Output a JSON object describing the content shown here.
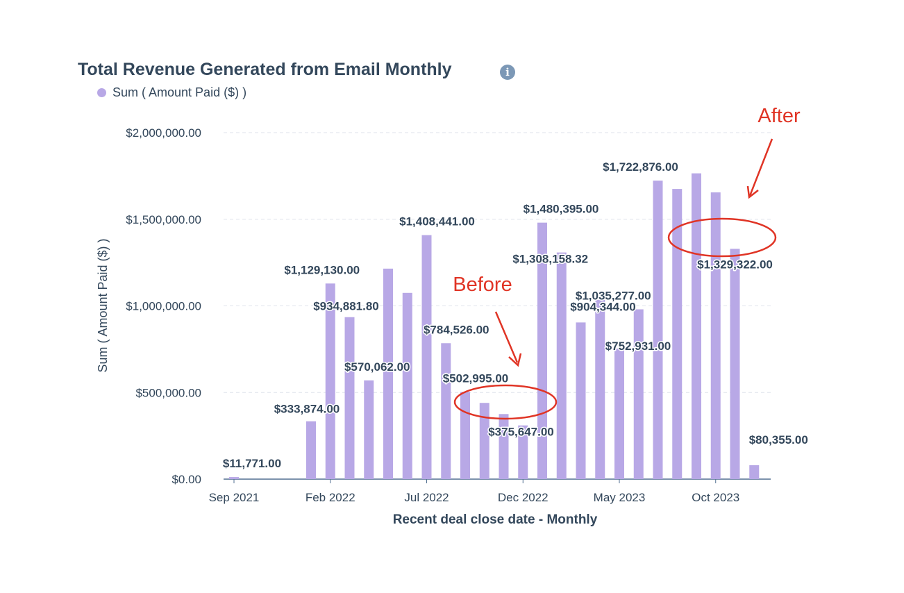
{
  "title": "Total Revenue Generated from Email Monthly",
  "info_icon": "info-circle-icon",
  "colors": {
    "bar": "#b8a8e6",
    "text": "#33475b",
    "grid": "#dfe3eb",
    "annotation": "#e03425"
  },
  "chart_data": {
    "type": "bar",
    "title": "Total Revenue Generated from Email Monthly",
    "xlabel": "Recent deal close date - Monthly",
    "ylabel": "Sum ( Amount Paid ($) )",
    "ylim": [
      0,
      2000000
    ],
    "yticks": [
      "$0.00",
      "$500,000.00",
      "$1,000,000.00",
      "$1,500,000.00",
      "$2,000,000.00"
    ],
    "xtick_labels": [
      {
        "category": "2021-09",
        "label": "Sep 2021"
      },
      {
        "category": "2022-02",
        "label": "Feb 2022"
      },
      {
        "category": "2022-07",
        "label": "Jul 2022"
      },
      {
        "category": "2022-12",
        "label": "Dec 2022"
      },
      {
        "category": "2023-05",
        "label": "May 2023"
      },
      {
        "category": "2023-10",
        "label": "Oct 2023"
      }
    ],
    "grid": true,
    "legend": "top-left",
    "categories": [
      "2021-09",
      "2021-10",
      "2021-11",
      "2021-12",
      "2022-01",
      "2022-02",
      "2022-03",
      "2022-04",
      "2022-05",
      "2022-06",
      "2022-07",
      "2022-08",
      "2022-09",
      "2022-10",
      "2022-11",
      "2022-12",
      "2023-01",
      "2023-02",
      "2023-03",
      "2023-04",
      "2023-05",
      "2023-06",
      "2023-07",
      "2023-08",
      "2023-09",
      "2023-10",
      "2023-11",
      "2023-12",
      "2024-01"
    ],
    "series": [
      {
        "name": "Sum ( Amount Paid ($) )",
        "values": [
          11771,
          0,
          0,
          0,
          333874,
          1129130,
          934881.8,
          570062,
          1215000,
          1075000,
          1408441,
          784526,
          502995,
          440000,
          375647,
          310000,
          1480395,
          1308158.32,
          904344,
          1035277,
          752931,
          980000,
          1722876,
          1675000,
          1765000,
          1655000,
          1329322,
          80355,
          0
        ],
        "data_labels": [
          "$11,771.00",
          null,
          null,
          null,
          "$333,874.00",
          "$1,129,130.00",
          "$934,881.80",
          "$570,062.00",
          null,
          null,
          "$1,408,441.00",
          "$784,526.00",
          "$502,995.00",
          null,
          "$375,647.00",
          null,
          "$1,480,395.00",
          "$1,308,158.32",
          "$904,344.00",
          "$1,035,277.00",
          "$752,931.00",
          null,
          "$1,722,876.00",
          null,
          null,
          null,
          "$1,329,322.00",
          "$80,355.00",
          null
        ]
      }
    ],
    "annotations": [
      {
        "text": "Before",
        "target": "2022-11",
        "color": "#e03425"
      },
      {
        "text": "After",
        "target": "2023-12",
        "color": "#e03425"
      }
    ]
  }
}
